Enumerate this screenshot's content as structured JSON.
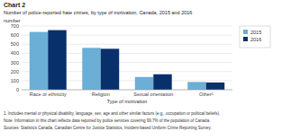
{
  "chart_data": {
    "type": "bar",
    "title": "Chart 2",
    "subtitle": "Number of police-reported hate crimes, by type of motivation, Canada, 2015 and 2016",
    "y_label": "number",
    "x_label": "Type of motivation",
    "categories": [
      "Race or ethnicity",
      "Religion",
      "Sexual orientation",
      "Other¹"
    ],
    "series": [
      {
        "name": "2015",
        "color": "#6baed6",
        "values": [
          635,
          460,
          140,
          85
        ]
      },
      {
        "name": "2016",
        "color": "#08306b",
        "values": [
          655,
          450,
          170,
          80
        ]
      }
    ],
    "ylim": [
      0,
      700
    ],
    "yticks": [
      0,
      100,
      200,
      300,
      400,
      500,
      600,
      700
    ],
    "grid": true,
    "legend": "right",
    "annotations": [
      "1. Includes mental or physical disability, language, sex, age and other similar factors (e.g., occupation or political beliefs).",
      "Note: Information in this chart reflects data reported by police services covering 99.7% of the population of Canada.",
      "Sources: Statistics Canada, Canadian Centre for Justice Statistics, Incident-based Uniform Crime Reporting Survey."
    ]
  }
}
